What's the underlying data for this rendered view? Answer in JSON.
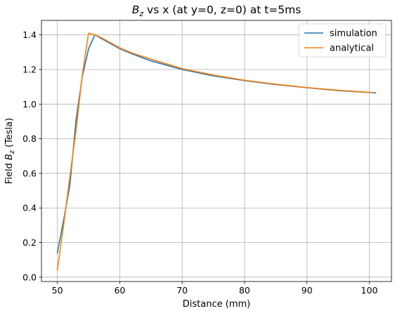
{
  "chart_data": {
    "type": "line",
    "title_parts": {
      "symbol": "B",
      "subscript": "z",
      "rest": " vs x (at y=0, z=0) at t=5ms"
    },
    "xlabel": "Distance (mm)",
    "ylabel_parts": {
      "prefix": "Field ",
      "symbol": "B",
      "subscript": "z",
      "suffix": " (Tesla)"
    },
    "xlim": [
      47.45,
      103.55
    ],
    "ylim": [
      -0.025,
      1.484
    ],
    "xticks": [
      50,
      60,
      70,
      80,
      90,
      100
    ],
    "xtick_labels": [
      "50",
      "60",
      "70",
      "80",
      "90",
      "100"
    ],
    "yticks": [
      0.0,
      0.2,
      0.4,
      0.6,
      0.8,
      1.0,
      1.2,
      1.4
    ],
    "ytick_labels": [
      "0.0",
      "0.2",
      "0.4",
      "0.6",
      "0.8",
      "1.0",
      "1.2",
      "1.4"
    ],
    "grid": true,
    "legend_position": "top-right",
    "series": [
      {
        "name": "simulation",
        "color": "#1f77b4",
        "x": [
          50,
          51,
          52,
          53,
          54,
          55,
          56,
          57,
          58,
          60,
          62,
          65,
          70,
          75,
          80,
          85,
          90,
          95,
          101
        ],
        "y": [
          0.14,
          0.33,
          0.53,
          0.91,
          1.16,
          1.32,
          1.4,
          1.38,
          1.36,
          1.32,
          1.29,
          1.25,
          1.2,
          1.163,
          1.136,
          1.113,
          1.095,
          1.078,
          1.065
        ]
      },
      {
        "name": "analytical",
        "color": "#ff7f0e",
        "x": [
          50,
          51,
          52,
          53,
          54,
          55,
          56,
          57,
          58,
          60,
          62,
          65,
          70,
          75,
          80,
          85,
          90,
          95,
          100.5
        ],
        "y": [
          0.04,
          0.3,
          0.58,
          0.85,
          1.17,
          1.41,
          1.4,
          1.385,
          1.365,
          1.325,
          1.295,
          1.26,
          1.205,
          1.168,
          1.138,
          1.115,
          1.096,
          1.08,
          1.067
        ]
      }
    ]
  }
}
